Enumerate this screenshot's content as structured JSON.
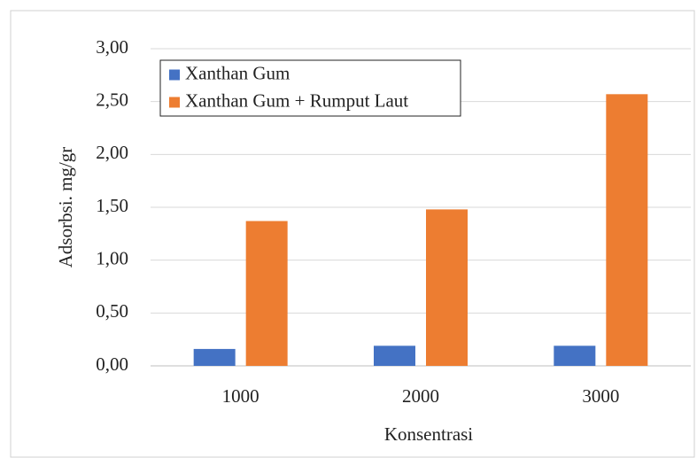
{
  "chart_data": {
    "type": "bar",
    "categories": [
      "1000",
      "2000",
      "3000"
    ],
    "series": [
      {
        "name": "Xanthan Gum",
        "color": "#4472c4",
        "values": [
          0.16,
          0.19,
          0.19
        ]
      },
      {
        "name": "Xanthan Gum + Rumput Laut",
        "color": "#ed7d31",
        "values": [
          1.37,
          1.48,
          2.57
        ]
      }
    ],
    "xlabel": "Konsentrasi",
    "ylabel": "Adsorbsi. mg/gr",
    "ylim": [
      0,
      3
    ],
    "yticks": [
      {
        "value": 0,
        "label": "0,00"
      },
      {
        "value": 0.5,
        "label": "0,50"
      },
      {
        "value": 1,
        "label": "1,00"
      },
      {
        "value": 1.5,
        "label": "1,50"
      },
      {
        "value": 2,
        "label": "2,00"
      },
      {
        "value": 2.5,
        "label": "2,50"
      },
      {
        "value": 3,
        "label": "3,00"
      }
    ],
    "grid": true,
    "legend": "upper left"
  }
}
